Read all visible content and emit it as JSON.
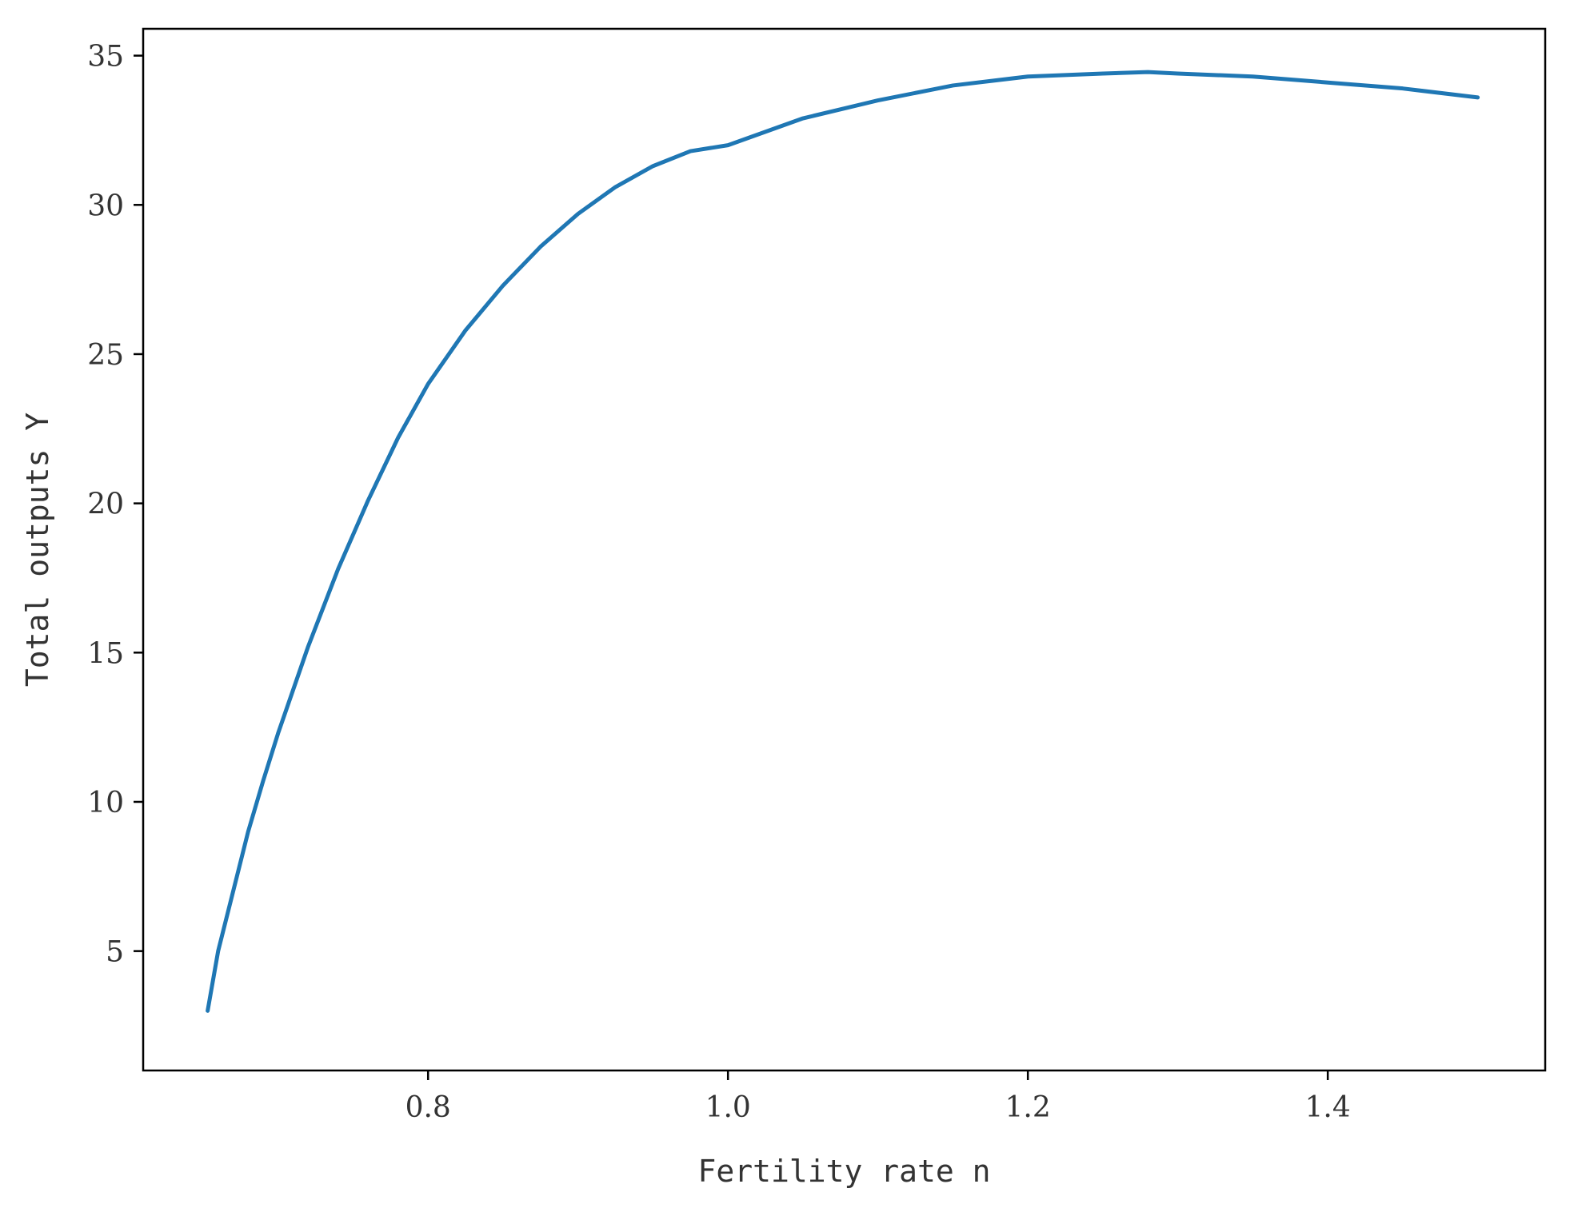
{
  "chart_data": {
    "type": "line",
    "title": "",
    "xlabel": "Fertility rate n",
    "ylabel": "Total outputs Y",
    "xlim": [
      0.61,
      1.545
    ],
    "ylim": [
      1.0,
      35.9
    ],
    "x_ticks": [
      0.8,
      1.0,
      1.2,
      1.4
    ],
    "x_tick_labels": [
      "0.8",
      "1.0",
      "1.2",
      "1.4"
    ],
    "y_ticks": [
      5,
      10,
      15,
      20,
      25,
      30,
      35
    ],
    "y_tick_labels": [
      "5",
      "10",
      "15",
      "20",
      "25",
      "30",
      "35"
    ],
    "grid": false,
    "series": [
      {
        "color": "#1f77b4",
        "x": [
          0.653,
          0.66,
          0.67,
          0.68,
          0.69,
          0.7,
          0.72,
          0.74,
          0.76,
          0.78,
          0.8,
          0.825,
          0.85,
          0.875,
          0.9,
          0.925,
          0.95,
          0.975,
          1.0,
          1.05,
          1.1,
          1.15,
          1.2,
          1.25,
          1.28,
          1.3,
          1.35,
          1.4,
          1.45,
          1.5
        ],
        "y": [
          3.0,
          5.0,
          7.0,
          9.0,
          10.7,
          12.3,
          15.2,
          17.8,
          20.1,
          22.2,
          24.0,
          25.8,
          27.3,
          28.6,
          29.7,
          30.6,
          31.3,
          31.8,
          32.0,
          32.9,
          33.5,
          34.0,
          34.3,
          34.4,
          34.45,
          34.4,
          34.3,
          34.1,
          33.9,
          33.6
        ]
      }
    ]
  }
}
